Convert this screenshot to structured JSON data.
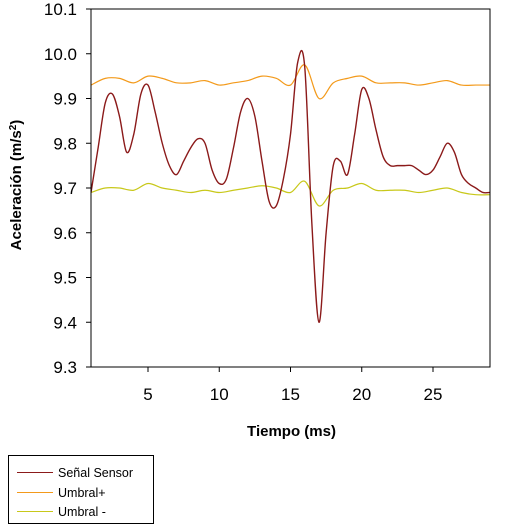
{
  "chart_data": {
    "type": "line",
    "xlabel": "Tiempo (ms)",
    "ylabel": "Aceleración (m/s",
    "ylabel_sup": "2",
    "ylabel_tail": ")",
    "xlim": [
      1,
      29
    ],
    "ylim": [
      9.3,
      10.1
    ],
    "xticks": [
      5,
      10,
      15,
      20,
      25
    ],
    "yticks": [
      9.3,
      9.4,
      9.5,
      9.6,
      9.7,
      9.8,
      9.9,
      10.0,
      10.1
    ],
    "ytick_labels": [
      "9.3",
      "9.4",
      "9.5",
      "9.6",
      "9.7",
      "9.8",
      "9.9",
      "10.0",
      "10.1"
    ],
    "grid": false,
    "legend_position": "below-left",
    "series": [
      {
        "name": "Señal Sensor",
        "color": "#8b1a1a",
        "x": [
          1.0,
          1.5,
          2.0,
          2.5,
          3.0,
          3.5,
          4.0,
          4.5,
          5.0,
          5.5,
          6.0,
          6.5,
          7.0,
          7.5,
          8.0,
          8.5,
          9.0,
          9.5,
          10.0,
          10.5,
          11.0,
          11.5,
          12.0,
          12.5,
          13.0,
          13.5,
          14.0,
          14.5,
          15.0,
          15.5,
          16.0,
          16.5,
          17.0,
          17.5,
          18.0,
          18.5,
          19.0,
          19.5,
          20.0,
          20.5,
          21.0,
          21.5,
          22.0,
          22.5,
          23.0,
          23.5,
          24.0,
          24.5,
          25.0,
          25.5,
          26.0,
          26.5,
          27.0,
          27.5,
          28.0,
          28.5,
          29.0
        ],
        "values": [
          9.69,
          9.79,
          9.89,
          9.91,
          9.86,
          9.78,
          9.82,
          9.91,
          9.93,
          9.87,
          9.8,
          9.75,
          9.73,
          9.76,
          9.79,
          9.81,
          9.8,
          9.74,
          9.71,
          9.72,
          9.79,
          9.87,
          9.9,
          9.86,
          9.76,
          9.67,
          9.66,
          9.72,
          9.82,
          9.98,
          9.97,
          9.62,
          9.4,
          9.6,
          9.75,
          9.76,
          9.73,
          9.82,
          9.92,
          9.9,
          9.83,
          9.77,
          9.75,
          9.75,
          9.75,
          9.75,
          9.74,
          9.73,
          9.74,
          9.77,
          9.8,
          9.78,
          9.73,
          9.71,
          9.7,
          9.69,
          9.69
        ]
      },
      {
        "name": "Umbral+",
        "color": "#f39a1b",
        "x": [
          1,
          2,
          3,
          4,
          5,
          6,
          7,
          8,
          9,
          10,
          11,
          12,
          13,
          14,
          15,
          16,
          17,
          18,
          19,
          20,
          21,
          22,
          23,
          24,
          25,
          26,
          27,
          28,
          29
        ],
        "values": [
          9.93,
          9.945,
          9.945,
          9.935,
          9.95,
          9.945,
          9.935,
          9.935,
          9.94,
          9.93,
          9.935,
          9.94,
          9.95,
          9.945,
          9.93,
          9.975,
          9.9,
          9.935,
          9.945,
          9.95,
          9.935,
          9.935,
          9.935,
          9.93,
          9.935,
          9.94,
          9.93,
          9.93,
          9.93
        ]
      },
      {
        "name": "Umbral -",
        "color": "#c8c81a",
        "x": [
          1,
          2,
          3,
          4,
          5,
          6,
          7,
          8,
          9,
          10,
          11,
          12,
          13,
          14,
          15,
          16,
          17,
          18,
          19,
          20,
          21,
          22,
          23,
          24,
          25,
          26,
          27,
          28,
          29
        ],
        "values": [
          9.69,
          9.7,
          9.7,
          9.695,
          9.71,
          9.7,
          9.695,
          9.69,
          9.695,
          9.69,
          9.695,
          9.7,
          9.705,
          9.7,
          9.69,
          9.715,
          9.66,
          9.695,
          9.7,
          9.71,
          9.695,
          9.695,
          9.695,
          9.69,
          9.695,
          9.7,
          9.69,
          9.685,
          9.685
        ]
      }
    ]
  },
  "legend": {
    "items": [
      "Señal Sensor",
      "Umbral+",
      "Umbral -"
    ]
  }
}
